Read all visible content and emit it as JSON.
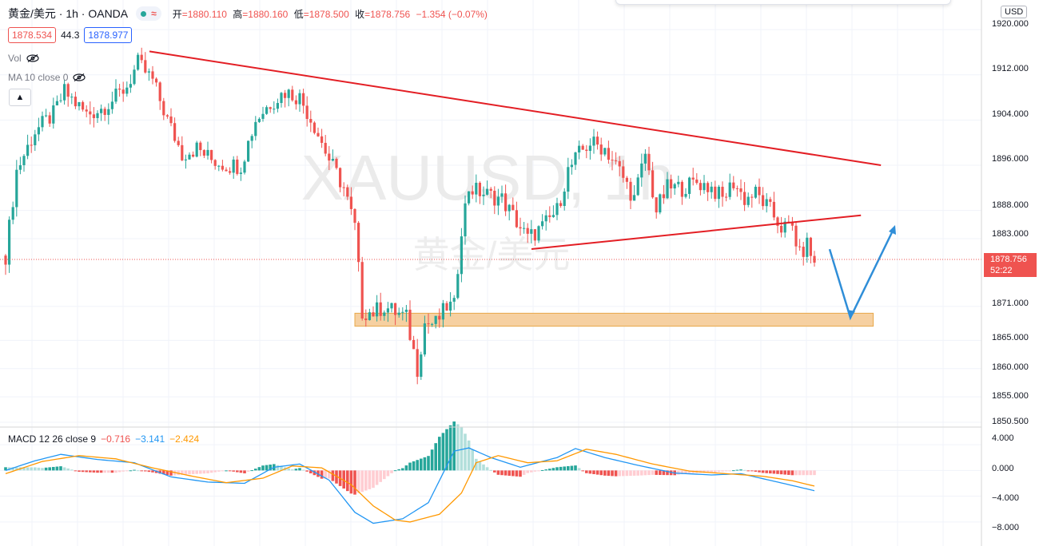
{
  "header": {
    "symbol": "黄金/美元 · 1h · OANDA",
    "open_label": "开",
    "open": "=1880.110",
    "high_label": "高",
    "high": "=1880.160",
    "low_label": "低",
    "low": "=1878.500",
    "close_label": "收",
    "close": "=1878.756",
    "change": "−1.354 (−0.07%)",
    "sell_price": "1878.534",
    "spread": "44.3",
    "buy_price": "1878.977",
    "vol_label": "Vol",
    "ma_label": "MA 10 close 0"
  },
  "currency": "USD",
  "last_price_tag": {
    "price": "1878.756",
    "countdown": "52:22"
  },
  "watermark": {
    "line1": "XAUUSD, 1h",
    "line2": "黄金/美元"
  },
  "macd": {
    "label": "MACD 12 26 close 9",
    "histogram_value": "−0.716",
    "macd_value": "−3.141",
    "signal_value": "−2.424",
    "axis_ticks": [
      "4.000",
      "0.000",
      "−4.000",
      "−8.000"
    ]
  },
  "colors": {
    "up": "#26a69a",
    "down": "#ef5350",
    "trendline": "#e31e24",
    "zone": "#f5c891",
    "arrow": "#2f8ed8",
    "macd": "#2196f3",
    "signal": "#ff9800"
  },
  "chart_data": {
    "type": "candlestick",
    "symbol": "XAUUSD",
    "timeframe": "1h",
    "y_axis": {
      "ticks": [
        "1920.000",
        "1912.000",
        "1904.000",
        "1896.000",
        "1888.000",
        "1883.000",
        "1871.000",
        "1865.000",
        "1860.000",
        "1855.000",
        "1850.500"
      ],
      "range": [
        1850.5,
        1921
      ]
    },
    "anchors": [
      [
        0,
        1880
      ],
      [
        3,
        1895
      ],
      [
        8,
        1902
      ],
      [
        13,
        1905
      ],
      [
        16,
        1909
      ],
      [
        19,
        1907
      ],
      [
        22,
        1905
      ],
      [
        26,
        1906
      ],
      [
        30,
        1908
      ],
      [
        33,
        1910
      ],
      [
        36,
        1914
      ],
      [
        40,
        1911
      ],
      [
        44,
        1904
      ],
      [
        48,
        1898
      ],
      [
        52,
        1899
      ],
      [
        56,
        1897
      ],
      [
        60,
        1896
      ],
      [
        64,
        1896
      ],
      [
        68,
        1904
      ],
      [
        72,
        1907
      ],
      [
        76,
        1909
      ],
      [
        80,
        1908
      ],
      [
        84,
        1903
      ],
      [
        88,
        1897
      ],
      [
        92,
        1892
      ],
      [
        95,
        1885
      ],
      [
        97,
        1870
      ],
      [
        100,
        1870
      ],
      [
        103,
        1871
      ],
      [
        106,
        1870
      ],
      [
        109,
        1869
      ],
      [
        112,
        1860
      ],
      [
        114,
        1868
      ],
      [
        117,
        1868
      ],
      [
        120,
        1871
      ],
      [
        122,
        1871
      ],
      [
        124,
        1885
      ],
      [
        126,
        1892
      ],
      [
        130,
        1891
      ],
      [
        135,
        1890
      ],
      [
        138,
        1887
      ],
      [
        142,
        1883
      ],
      [
        146,
        1885
      ],
      [
        150,
        1888
      ],
      [
        153,
        1895
      ],
      [
        156,
        1898
      ],
      [
        159,
        1900
      ],
      [
        163,
        1899
      ],
      [
        167,
        1895
      ],
      [
        171,
        1890
      ],
      [
        174,
        1898
      ],
      [
        177,
        1888
      ],
      [
        180,
        1892
      ],
      [
        184,
        1892
      ],
      [
        188,
        1893
      ],
      [
        192,
        1892
      ],
      [
        195,
        1890
      ],
      [
        198,
        1893
      ],
      [
        201,
        1890
      ],
      [
        204,
        1891
      ],
      [
        208,
        1888
      ],
      [
        211,
        1885
      ],
      [
        214,
        1885
      ],
      [
        216,
        1880
      ],
      [
        218,
        1882
      ],
      [
        220,
        1878.756
      ]
    ],
    "macd_range": [
      -9,
      5
    ],
    "macd_anchors": [
      [
        0,
        0
      ],
      [
        8,
        1.5
      ],
      [
        15,
        2.5
      ],
      [
        25,
        1.7
      ],
      [
        35,
        1.2
      ],
      [
        45,
        -1.0
      ],
      [
        55,
        -1.8
      ],
      [
        65,
        -2.0
      ],
      [
        73,
        0.5
      ],
      [
        80,
        1.0
      ],
      [
        88,
        -1.5
      ],
      [
        95,
        -6.5
      ],
      [
        100,
        -8.2
      ],
      [
        108,
        -7.5
      ],
      [
        115,
        -5.0
      ],
      [
        122,
        3.0
      ],
      [
        126,
        3.5
      ],
      [
        132,
        2.0
      ],
      [
        140,
        0.5
      ],
      [
        150,
        2.0
      ],
      [
        155,
        3.4
      ],
      [
        163,
        2.0
      ],
      [
        172,
        0.8
      ],
      [
        182,
        -0.4
      ],
      [
        192,
        -0.7
      ],
      [
        200,
        -0.5
      ],
      [
        210,
        -1.8
      ],
      [
        220,
        -3.141
      ]
    ],
    "signal_anchors": [
      [
        0,
        -0.5
      ],
      [
        10,
        1.4
      ],
      [
        20,
        2.3
      ],
      [
        30,
        1.8
      ],
      [
        40,
        0.4
      ],
      [
        50,
        -0.8
      ],
      [
        60,
        -1.9
      ],
      [
        70,
        -1.2
      ],
      [
        78,
        0.7
      ],
      [
        86,
        0.4
      ],
      [
        94,
        -2.2
      ],
      [
        100,
        -5.5
      ],
      [
        106,
        -7.7
      ],
      [
        110,
        -8.0
      ],
      [
        118,
        -6.8
      ],
      [
        124,
        -3.5
      ],
      [
        128,
        1.2
      ],
      [
        134,
        2.3
      ],
      [
        142,
        1.2
      ],
      [
        150,
        1.5
      ],
      [
        158,
        3.3
      ],
      [
        166,
        2.5
      ],
      [
        176,
        1.0
      ],
      [
        186,
        -0.1
      ],
      [
        196,
        -0.5
      ],
      [
        206,
        -0.9
      ],
      [
        214,
        -1.6
      ],
      [
        220,
        -2.424
      ]
    ],
    "annotations": {
      "resistance_trendline": [
        [
          0,
          1916
        ],
        [
          212,
          1896
        ]
      ],
      "support_trendline": [
        [
          150,
          1882
        ],
        [
          212,
          1886
        ]
      ],
      "demand_zone": {
        "x": [
          95,
          236
        ],
        "y": [
          1867.5,
          1869.8
        ]
      },
      "forecast_path": [
        [
          224,
          1880
        ],
        [
          228,
          1868
        ],
        [
          240,
          1885
        ]
      ]
    }
  }
}
